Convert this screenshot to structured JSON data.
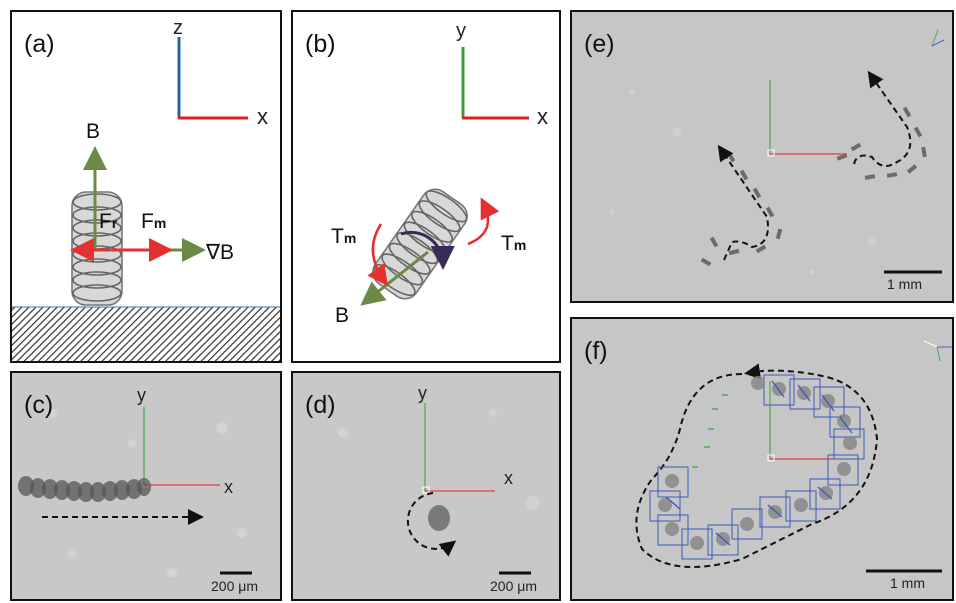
{
  "panels": {
    "a": {
      "label": "(a)",
      "axes": {
        "z": "z",
        "x": "x"
      },
      "vectors": {
        "b": "B",
        "fr_main": "F",
        "fr_sub": "r",
        "fm_main": "F",
        "fm_sub": "m",
        "gradb": "∇B"
      }
    },
    "b": {
      "label": "(b)",
      "axes": {
        "y": "y",
        "x": "x"
      },
      "vectors": {
        "tm_left_main": "T",
        "tm_left_sub": "m",
        "tm_right_main": "T",
        "tm_right_sub": "m",
        "b": "B"
      }
    },
    "c": {
      "label": "(c)",
      "axes": {
        "y": "y",
        "x": "x"
      },
      "scale_bar": "200 μm"
    },
    "d": {
      "label": "(d)",
      "axes": {
        "y": "y",
        "x": "x"
      },
      "scale_bar": "200 μm"
    },
    "e": {
      "label": "(e)",
      "scale_bar": "1 mm"
    },
    "f": {
      "label": "(f)",
      "scale_bar": "1 mm"
    }
  },
  "colors": {
    "axis_red": "#e02020",
    "axis_green": "#4a9a3a",
    "axis_blue": "#2a62a8",
    "vector_olive": "#6b8a45",
    "force_red": "#e43030",
    "micro_bg": "#c8c8c8"
  }
}
